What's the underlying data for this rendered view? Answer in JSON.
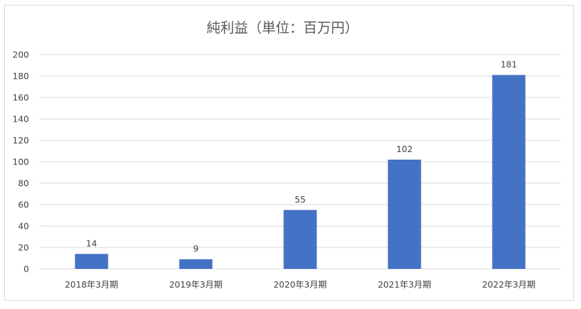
{
  "chart_data": {
    "type": "bar",
    "title": "純利益（単位：百万円）",
    "categories": [
      "2018年3月期",
      "2019年3月期",
      "2020年3月期",
      "2021年3月期",
      "2022年3月期"
    ],
    "values": [
      14,
      9,
      55,
      102,
      181
    ],
    "ylim": [
      0,
      200
    ],
    "yticks": [
      0,
      20,
      40,
      60,
      80,
      100,
      120,
      140,
      160,
      180,
      200
    ],
    "xlabel": "",
    "ylabel": "",
    "grid": true,
    "legend": "none",
    "bar_color": "#4472c4",
    "grid_color": "#d9d9d9",
    "text_color": "#404040",
    "title_color": "#595959"
  }
}
